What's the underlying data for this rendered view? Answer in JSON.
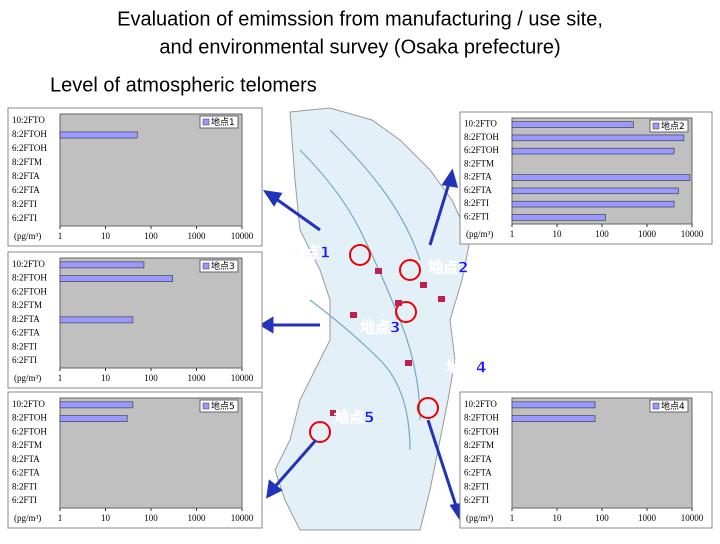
{
  "slide": {
    "title_line1": "Evaluation of emimssion from manufacturing / use site,",
    "title_line2": "and environmental survey (Osaka prefecture)",
    "subtitle": "Level of atmospheric telomers"
  },
  "map": {
    "labels": [
      "地点1",
      "地点2",
      "地点3",
      "地点4",
      "地点5"
    ]
  },
  "chart_data": [
    {
      "type": "bar",
      "name": "地点1",
      "categories": [
        "10:2FTO",
        "8:2FTOH",
        "6:2FTOH",
        "8:2FTM",
        "8:2FTA",
        "6:2FTA",
        "8:2FTI",
        "6:2FTI"
      ],
      "values": [
        null,
        50,
        null,
        null,
        null,
        null,
        null,
        null
      ],
      "color": "#9999ff",
      "xlim": [
        1,
        10000
      ],
      "xticks": [
        1,
        10,
        100,
        1000,
        10000
      ],
      "log_x": true,
      "x_label": "(pg/m³)"
    },
    {
      "type": "bar",
      "name": "地点2",
      "categories": [
        "10:2FTO",
        "8:2FTOH",
        "6:2FTOH",
        "8:2FTM",
        "8:2FTA",
        "6:2FTA",
        "8:2FTI",
        "6:2FTI"
      ],
      "values": [
        500,
        6600,
        4000,
        null,
        9000,
        5000,
        4000,
        120
      ],
      "color": "#9999ff",
      "xlim": [
        1,
        10000
      ],
      "xticks": [
        1,
        10,
        100,
        1000,
        10000
      ],
      "log_x": true,
      "x_label": "(pg/m³)"
    },
    {
      "type": "bar",
      "name": "地点3",
      "categories": [
        "10:2FTO",
        "8:2FTOH",
        "6:2FTOH",
        "8:2FTM",
        "8:2FTA",
        "6:2FTA",
        "8:2FTI",
        "6:2FTI"
      ],
      "values": [
        70,
        300,
        null,
        null,
        40,
        null,
        null,
        null
      ],
      "color": "#9999ff",
      "xlim": [
        1,
        10000
      ],
      "xticks": [
        1,
        10,
        100,
        1000,
        10000
      ],
      "log_x": true,
      "x_label": "(pg/m³)"
    },
    {
      "type": "bar",
      "name": "地点5",
      "categories": [
        "10:2FTO",
        "8:2FTOH",
        "6:2FTOH",
        "8:2FTM",
        "8:2FTA",
        "6:2FTA",
        "8:2FTI",
        "6:2FTI"
      ],
      "values": [
        40,
        30,
        null,
        null,
        null,
        null,
        null,
        null
      ],
      "color": "#9999ff",
      "xlim": [
        1,
        10000
      ],
      "xticks": [
        1,
        10,
        100,
        1000,
        10000
      ],
      "log_x": true,
      "x_label": "(pg/m³)"
    },
    {
      "type": "bar",
      "name": "地点4",
      "categories": [
        "10:2FTO",
        "8:2FTOH",
        "6:2FTOH",
        "8:2FTM",
        "8:2FTA",
        "6:2FTA",
        "8:2FTI",
        "6:2FTI"
      ],
      "values": [
        70,
        70,
        null,
        null,
        null,
        null,
        null,
        null
      ],
      "color": "#9999ff",
      "xlim": [
        1,
        10000
      ],
      "xticks": [
        1,
        10,
        100,
        1000,
        10000
      ],
      "log_x": true,
      "x_label": "(pg/m³)"
    }
  ]
}
